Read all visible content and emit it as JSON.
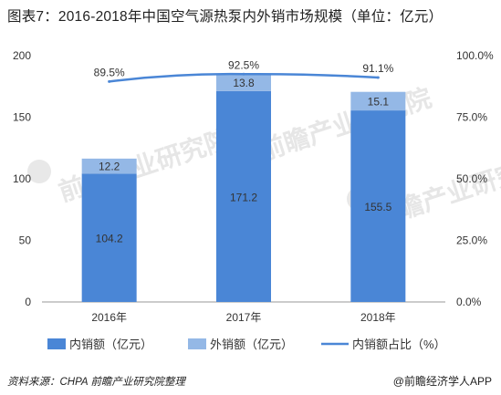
{
  "title": "图表7：2016-2018年中国空气源热泵内外销市场规模（单位：亿元）",
  "source": "资料来源：CHPA 前瞻产业研究院整理",
  "brand": "@前瞻经济学人APP",
  "watermark": "前瞻产业研究院",
  "colors": {
    "domestic": "#4a86d6",
    "export": "#94b8e6",
    "ratio_line": "#4a86d6",
    "axis": "#999999",
    "text": "#333333"
  },
  "chart_data": {
    "type": "bar",
    "stacked": true,
    "categories": [
      "2016年",
      "2017年",
      "2018年"
    ],
    "series": [
      {
        "name": "内销额（亿元）",
        "values": [
          104.2,
          171.2,
          155.5
        ],
        "labels": [
          "104.2",
          "171.2",
          "155.5"
        ]
      },
      {
        "name": "外销额（亿元）",
        "values": [
          12.2,
          13.8,
          15.1
        ],
        "labels": [
          "12.2",
          "13.8",
          "15.1"
        ]
      }
    ],
    "line_series": {
      "name": "内销额占比（%）",
      "values": [
        89.5,
        92.5,
        91.1
      ],
      "labels": [
        "89.5%",
        "92.5%",
        "91.1%"
      ],
      "axis": "right"
    },
    "y_left": {
      "min": 0,
      "max": 200,
      "ticks": [
        "0",
        "50",
        "100",
        "150",
        "200"
      ],
      "tick_values": [
        0,
        50,
        100,
        150,
        200
      ]
    },
    "y_right": {
      "min": 0,
      "max": 100,
      "ticks": [
        "0.0%",
        "25.0%",
        "50.0%",
        "75.0%",
        "100.0%"
      ],
      "tick_values": [
        0,
        25,
        50,
        75,
        100
      ]
    },
    "legend_position": "bottom",
    "grid": false
  }
}
